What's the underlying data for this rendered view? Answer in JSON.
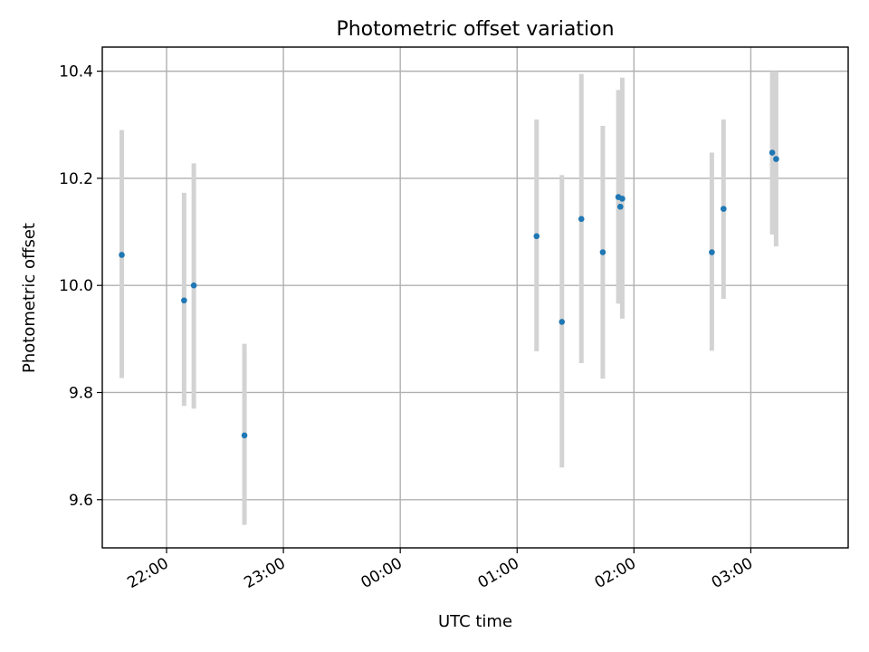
{
  "chart_data": {
    "type": "scatter",
    "title": "Photometric offset variation",
    "xlabel": "UTC time",
    "ylabel": "Photometric offset",
    "x_axis_kind": "time",
    "x_ticks": [
      "22:00",
      "23:00",
      "00:00",
      "01:00",
      "02:00",
      "03:00"
    ],
    "y_ticks": [
      9.6,
      9.8,
      10.0,
      10.2,
      10.4
    ],
    "xlim": [
      "21:27",
      "03:50"
    ],
    "ylim": [
      9.51,
      10.445
    ],
    "grid": true,
    "colors": {
      "point": "#1f77b4",
      "error_bar": "#d3d3d3",
      "grid": "#b0b0b0"
    },
    "points": [
      {
        "time": "21:37",
        "y": 10.057,
        "ylow": 9.827,
        "yhigh": 10.29
      },
      {
        "time": "22:09",
        "y": 9.972,
        "ylow": 9.775,
        "yhigh": 10.173
      },
      {
        "time": "22:14",
        "y": 10.0,
        "ylow": 9.77,
        "yhigh": 10.228
      },
      {
        "time": "22:40",
        "y": 9.72,
        "ylow": 9.553,
        "yhigh": 9.891
      },
      {
        "time": "01:10",
        "y": 10.092,
        "ylow": 9.877,
        "yhigh": 10.31
      },
      {
        "time": "01:23",
        "y": 9.932,
        "ylow": 9.66,
        "yhigh": 10.206
      },
      {
        "time": "01:33",
        "y": 10.124,
        "ylow": 9.855,
        "yhigh": 10.395
      },
      {
        "time": "01:44",
        "y": 10.062,
        "ylow": 9.826,
        "yhigh": 10.298
      },
      {
        "time": "01:52",
        "y": 10.165,
        "ylow": 9.966,
        "yhigh": 10.365
      },
      {
        "time": "01:53",
        "y": 10.147,
        "ylow": 9.966,
        "yhigh": 10.365
      },
      {
        "time": "01:54",
        "y": 10.162,
        "ylow": 9.938,
        "yhigh": 10.388
      },
      {
        "time": "02:40",
        "y": 10.062,
        "ylow": 9.878,
        "yhigh": 10.248
      },
      {
        "time": "02:46",
        "y": 10.143,
        "ylow": 9.975,
        "yhigh": 10.31
      },
      {
        "time": "03:11",
        "y": 10.248,
        "ylow": 10.095,
        "yhigh": 10.4
      },
      {
        "time": "03:13",
        "y": 10.236,
        "ylow": 10.073,
        "yhigh": 10.4
      }
    ]
  }
}
